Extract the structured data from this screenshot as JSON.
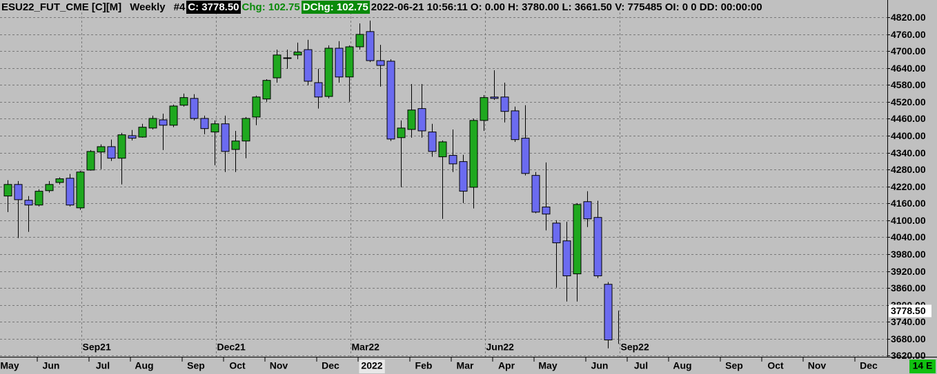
{
  "header": {
    "symbol": "ESU22_FUT_CME [C][M]",
    "period": "Weekly",
    "chart_number": "#4",
    "close": "C: 3778.50",
    "change": "Chg: 102.75",
    "daily_change": "DChg: 102.75",
    "timestamp": "2022-06-21 10:56:11",
    "stats": "O: 0.00 H: 3780.00 L: 3661.50 V: 775485 OI: 0 0 DD: 00:00:00"
  },
  "chart_data": {
    "type": "candlestick",
    "up_color": "#1fa81f",
    "down_color": "#6b6bf0",
    "open": [
      4186,
      4227,
      4171,
      4154,
      4205,
      4234,
      4249,
      4144,
      4278,
      4342,
      4361,
      4320,
      4400,
      4395,
      4427,
      4456,
      4437,
      4508,
      4532,
      4461,
      4413,
      4442,
      4351,
      4381,
      4466,
      4530,
      4605,
      4676,
      4686,
      4705,
      4588,
      4539,
      4710,
      4608,
      4715,
      4769,
      4666,
      4664,
      4393,
      4422,
      4496,
      4413,
      4325,
      4330,
      4308,
      4217,
      4454,
      4537,
      4537,
      4488,
      4391,
      4259,
      4147,
      4090,
      4027,
      3910,
      4166,
      4110,
      3873,
      null
    ],
    "high": [
      4242,
      4239,
      4186,
      4210,
      4239,
      4252,
      4264,
      4276,
      4349,
      4369,
      4386,
      4410,
      4420,
      4442,
      4471,
      4478,
      4510,
      4549,
      4547,
      4471,
      4454,
      4471,
      4417,
      4466,
      4542,
      4600,
      4705,
      4705,
      4730,
      4740,
      4637,
      4720,
      4735,
      4720,
      4798,
      4808,
      4722,
      4671,
      4454,
      4583,
      4583,
      4442,
      4383,
      4422,
      4332,
      4461,
      4544,
      4632,
      4588,
      4503,
      4508,
      4271,
      4305,
      4100,
      4095,
      4161,
      4203,
      4169,
      3881,
      3780
    ],
    "low": [
      4129,
      4037,
      4059,
      4149,
      4198,
      4227,
      4149,
      4137,
      4276,
      4281,
      4310,
      4227,
      4383,
      4393,
      4422,
      4349,
      4430,
      4503,
      4454,
      4405,
      4295,
      4271,
      4271,
      4320,
      4437,
      4520,
      4588,
      4637,
      4671,
      4578,
      4496,
      4532,
      4588,
      4520,
      4705,
      4661,
      4574,
      4381,
      4217,
      4393,
      4393,
      4325,
      4105,
      4271,
      4161,
      4142,
      4417,
      4527,
      4447,
      4378,
      4259,
      4125,
      4064,
      3861,
      3812,
      3812,
      4076,
      3895,
      3646,
      3661.5
    ],
    "close": [
      4227,
      4173,
      4154,
      4203,
      4227,
      4247,
      4154,
      4271,
      4344,
      4361,
      4320,
      4403,
      4391,
      4430,
      4461,
      4437,
      4505,
      4535,
      4461,
      4425,
      4442,
      4344,
      4381,
      4461,
      4537,
      4596,
      4686,
      4674,
      4696,
      4593,
      4537,
      4710,
      4608,
      4715,
      4759,
      4666,
      4649,
      4388,
      4427,
      4491,
      4417,
      4344,
      4378,
      4300,
      4203,
      4454,
      4535,
      4532,
      4486,
      4386,
      4266,
      4129,
      4122,
      4020,
      3903,
      4156,
      4105,
      3903,
      3675.75,
      3778.5
    ],
    "ylim": [
      3616,
      4837
    ],
    "yticks": [
      {
        "value": 3620,
        "label": "3620.00"
      },
      {
        "value": 3680,
        "label": "3680.00"
      },
      {
        "value": 3740,
        "label": "3740.00"
      },
      {
        "value": 3800,
        "label": "3800.00"
      },
      {
        "value": 3860,
        "label": "3860.00"
      },
      {
        "value": 3920,
        "label": "3920.00"
      },
      {
        "value": 3980,
        "label": "3980.00"
      },
      {
        "value": 4040,
        "label": "4040.00"
      },
      {
        "value": 4100,
        "label": "4100.00"
      },
      {
        "value": 4160,
        "label": "4160.00"
      },
      {
        "value": 4220,
        "label": "4220.00"
      },
      {
        "value": 4280,
        "label": "4280.00"
      },
      {
        "value": 4340,
        "label": "4340.00"
      },
      {
        "value": 4400,
        "label": "4400.00"
      },
      {
        "value": 4460,
        "label": "4460.00"
      },
      {
        "value": 4520,
        "label": "4520.00"
      },
      {
        "value": 4580,
        "label": "4580.00"
      },
      {
        "value": 4640,
        "label": "4640.00"
      },
      {
        "value": 4700,
        "label": "4700.00"
      },
      {
        "value": 4760,
        "label": "4760.00"
      },
      {
        "value": 4820,
        "label": "4820.00"
      }
    ],
    "grid": true,
    "last_price": {
      "value": 3778.5,
      "label": "3778.50"
    },
    "quarter_markers": [
      {
        "label": "Sep21",
        "index": 7
      },
      {
        "label": "Dec21",
        "index": 20
      },
      {
        "label": "Mar22",
        "index": 33
      },
      {
        "label": "Jun22",
        "index": 46
      },
      {
        "label": "Sep22",
        "index": 59
      }
    ],
    "time_labels": [
      {
        "label": "May",
        "index": 0
      },
      {
        "label": "Jun",
        "index": 4
      },
      {
        "label": "Jul",
        "index": 9
      },
      {
        "label": "Aug",
        "index": 13
      },
      {
        "label": "Sep",
        "index": 18
      },
      {
        "label": "Oct",
        "index": 22
      },
      {
        "label": "Nov",
        "index": 26
      },
      {
        "label": "Dec",
        "index": 31
      },
      {
        "label": "2022",
        "index": 35
      },
      {
        "label": "Feb",
        "index": 40
      },
      {
        "label": "Mar",
        "index": 44
      },
      {
        "label": "Apr",
        "index": 48
      },
      {
        "label": "May",
        "index": 52
      },
      {
        "label": "Jun",
        "index": 57
      },
      {
        "label": "Jul",
        "index": 61
      },
      {
        "label": "Aug",
        "index": 65
      },
      {
        "label": "Sep",
        "index": 70
      },
      {
        "label": "Oct",
        "index": 74
      },
      {
        "label": "Nov",
        "index": 78
      },
      {
        "label": "Dec",
        "index": 83
      }
    ],
    "time_remaining": "14 E"
  }
}
